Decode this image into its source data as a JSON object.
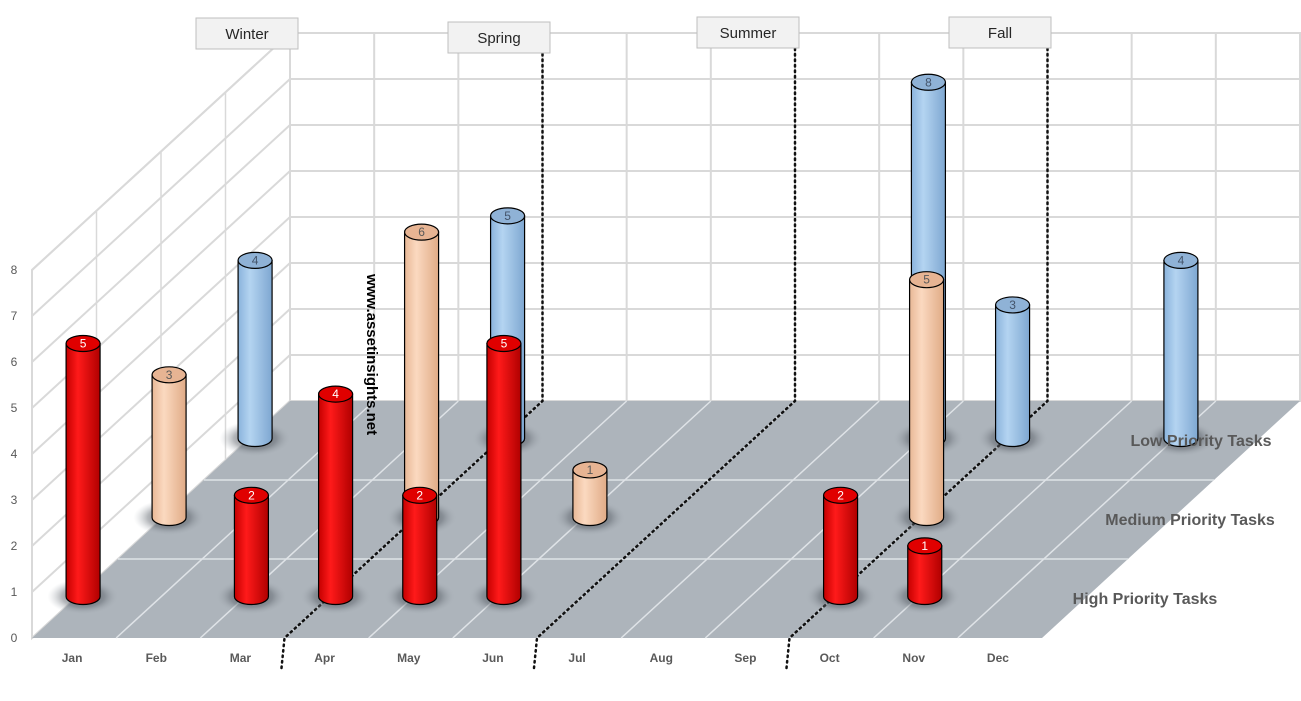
{
  "chart_data": {
    "type": "bar",
    "variant": "3d-cylinder",
    "categories": [
      "Jan",
      "Feb",
      "Mar",
      "Apr",
      "May",
      "Jun",
      "Jul",
      "Aug",
      "Sep",
      "Oct",
      "Nov",
      "Dec"
    ],
    "series": [
      {
        "name": "High Priority Tasks",
        "values": [
          5,
          null,
          2,
          4,
          2,
          5,
          null,
          null,
          null,
          2,
          1,
          null
        ],
        "color": "#ff0000"
      },
      {
        "name": "Medium Priority Tasks",
        "values": [
          3,
          null,
          null,
          6,
          null,
          1,
          null,
          null,
          null,
          5,
          null,
          null
        ],
        "color": "#f8cbad"
      },
      {
        "name": "Low Priority Tasks",
        "values": [
          4,
          null,
          null,
          5,
          null,
          null,
          null,
          null,
          8,
          3,
          null,
          4
        ],
        "color": "#9dc3e6"
      }
    ],
    "y_ticks": [
      0,
      1,
      2,
      3,
      4,
      5,
      6,
      7,
      8
    ],
    "ylim": [
      0,
      8
    ],
    "grid": true,
    "seasons": [
      {
        "label": "Winter"
      },
      {
        "label": "Spring"
      },
      {
        "label": "Summer"
      },
      {
        "label": "Fall"
      }
    ],
    "watermark": "www.assetinsights.net",
    "floor_color": "#adb4bb",
    "grid_color": "#d9d9d9"
  }
}
